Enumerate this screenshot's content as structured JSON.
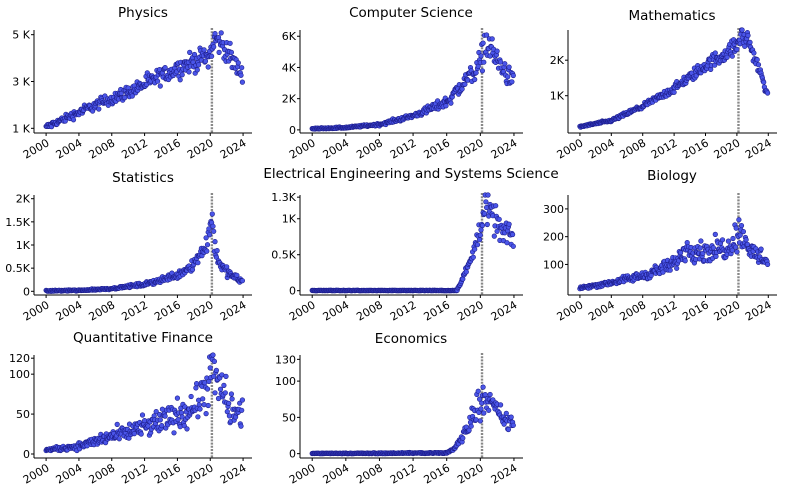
{
  "chart_data": [
    {
      "type": "scatter",
      "title": "Physics",
      "xlim": [
        1999.5,
        2024.6
      ],
      "ylim": [
        800,
        5200
      ],
      "yticks": [
        {
          "v": 1000,
          "label": "1 K"
        },
        {
          "v": 3000,
          "label": "3 K"
        },
        {
          "v": 5000,
          "label": "5 K"
        }
      ],
      "xticks": [
        "2000",
        "2004",
        "2008",
        "2012",
        "2016",
        "2020",
        "2024"
      ],
      "vline": 2020.2,
      "trend": [
        [
          2000,
          1050
        ],
        [
          2005,
          1850
        ],
        [
          2010,
          2550
        ],
        [
          2015,
          3400
        ],
        [
          2020,
          4150
        ],
        [
          2020.5,
          4800
        ],
        [
          2021.5,
          4600
        ],
        [
          2022.5,
          4000
        ],
        [
          2023.5,
          3500
        ],
        [
          2024,
          3250
        ]
      ],
      "noise": 0.055
    },
    {
      "type": "scatter",
      "title": "Computer Science",
      "xlim": [
        1999.5,
        2024.6
      ],
      "ylim": [
        -200,
        6400
      ],
      "yticks": [
        {
          "v": 0,
          "label": "0"
        },
        {
          "v": 2000,
          "label": "2K"
        },
        {
          "v": 4000,
          "label": "4K"
        },
        {
          "v": 6000,
          "label": "6K"
        }
      ],
      "xticks": [
        "2000",
        "2004",
        "2008",
        "2012",
        "2016",
        "2020",
        "2024"
      ],
      "vline": 2020.2,
      "trend": [
        [
          2000,
          80
        ],
        [
          2004,
          150
        ],
        [
          2008,
          350
        ],
        [
          2012,
          900
        ],
        [
          2016,
          1800
        ],
        [
          2018,
          3000
        ],
        [
          2020,
          4300
        ],
        [
          2020.6,
          5600
        ],
        [
          2021.5,
          5000
        ],
        [
          2022.5,
          4000
        ],
        [
          2023.5,
          3300
        ],
        [
          2024,
          3100
        ]
      ],
      "noise": 0.09
    },
    {
      "type": "scatter",
      "title": "Mathematics",
      "xlim": [
        1999.5,
        2024.6
      ],
      "ylim": [
        -50,
        2850
      ],
      "yticks": [
        {
          "v": 1000,
          "label": "1K"
        },
        {
          "v": 2000,
          "label": "2K"
        }
      ],
      "xticks": [
        "2000",
        "2004",
        "2008",
        "2012",
        "2016",
        "2020",
        "2024"
      ],
      "vline": 2020.2,
      "trend": [
        [
          2000,
          130
        ],
        [
          2004,
          300
        ],
        [
          2008,
          700
        ],
        [
          2012,
          1200
        ],
        [
          2016,
          1850
        ],
        [
          2020,
          2400
        ],
        [
          2020.5,
          2700
        ],
        [
          2021.5,
          2550
        ],
        [
          2022.5,
          1900
        ],
        [
          2023.5,
          1350
        ],
        [
          2024,
          900
        ]
      ],
      "noise": 0.05
    },
    {
      "type": "scatter",
      "title": "Statistics",
      "xlim": [
        1999.5,
        2024.6
      ],
      "ylim": [
        -80,
        2080
      ],
      "yticks": [
        {
          "v": 0,
          "label": "0"
        },
        {
          "v": 500,
          "label": "0.5K"
        },
        {
          "v": 1000,
          "label": "1K"
        },
        {
          "v": 1500,
          "label": "1.5K"
        },
        {
          "v": 2000,
          "label": "2K"
        }
      ],
      "xticks": [
        "2000",
        "2004",
        "2008",
        "2012",
        "2016",
        "2020",
        "2024"
      ],
      "vline": 2020.2,
      "trend": [
        [
          2000,
          10
        ],
        [
          2004,
          20
        ],
        [
          2008,
          60
        ],
        [
          2012,
          150
        ],
        [
          2016,
          350
        ],
        [
          2018,
          600
        ],
        [
          2019.5,
          1000
        ],
        [
          2020.2,
          1600
        ],
        [
          2020.6,
          900
        ],
        [
          2021.5,
          500
        ],
        [
          2022.5,
          350
        ],
        [
          2024,
          200
        ]
      ],
      "noise": 0.12
    },
    {
      "type": "scatter",
      "title": "Electrical Engineering and Systems Science",
      "xlim": [
        1999.5,
        2024.6
      ],
      "ylim": [
        -60,
        1330
      ],
      "yticks": [
        {
          "v": 0,
          "label": "0"
        },
        {
          "v": 500,
          "label": "0.5K"
        },
        {
          "v": 1000,
          "label": "1K"
        },
        {
          "v": 1300,
          "label": "1.3K"
        }
      ],
      "xticks": [
        "2000",
        "2004",
        "2008",
        "2012",
        "2016",
        "2020",
        "2024"
      ],
      "vline": 2020.2,
      "trend": [
        [
          2000,
          0
        ],
        [
          2017.2,
          0
        ],
        [
          2018,
          200
        ],
        [
          2019,
          450
        ],
        [
          2020,
          900
        ],
        [
          2020.6,
          1150
        ],
        [
          2021.5,
          1000
        ],
        [
          2022.5,
          850
        ],
        [
          2024,
          700
        ]
      ],
      "noise": 0.1
    },
    {
      "type": "scatter",
      "title": "Biology",
      "xlim": [
        1999.5,
        2024.6
      ],
      "ylim": [
        -10,
        350
      ],
      "yticks": [
        {
          "v": 100,
          "label": "100"
        },
        {
          "v": 200,
          "label": "200"
        },
        {
          "v": 300,
          "label": "300"
        }
      ],
      "xticks": [
        "2000",
        "2004",
        "2008",
        "2012",
        "2016",
        "2020",
        "2024"
      ],
      "vline": 2020.2,
      "trend": [
        [
          2000,
          15
        ],
        [
          2004,
          35
        ],
        [
          2008,
          60
        ],
        [
          2012,
          100
        ],
        [
          2013.5,
          160
        ],
        [
          2016,
          145
        ],
        [
          2019,
          165
        ],
        [
          2020.2,
          220
        ],
        [
          2021,
          190
        ],
        [
          2022,
          140
        ],
        [
          2024,
          115
        ]
      ],
      "noise": 0.13
    },
    {
      "type": "scatter",
      "title": "Quantitative Finance",
      "xlim": [
        1999.5,
        2024.6
      ],
      "ylim": [
        -5,
        124
      ],
      "yticks": [
        {
          "v": 0,
          "label": "0"
        },
        {
          "v": 50,
          "label": "50"
        },
        {
          "v": 100,
          "label": "100"
        },
        {
          "v": 120,
          "label": "120"
        }
      ],
      "xticks": [
        "2000",
        "2004",
        "2008",
        "2012",
        "2016",
        "2020",
        "2024"
      ],
      "vline": 2020.2,
      "trend": [
        [
          2000,
          5
        ],
        [
          2004,
          10
        ],
        [
          2008,
          22
        ],
        [
          2012,
          33
        ],
        [
          2016,
          48
        ],
        [
          2019,
          68
        ],
        [
          2020.5,
          105
        ],
        [
          2021.5,
          75
        ],
        [
          2022.5,
          55
        ],
        [
          2024,
          45
        ]
      ],
      "noise": 0.2
    },
    {
      "type": "scatter",
      "title": "Economics",
      "xlim": [
        1999.5,
        2024.6
      ],
      "ylim": [
        -6,
        136
      ],
      "yticks": [
        {
          "v": 0,
          "label": "0"
        },
        {
          "v": 50,
          "label": "50"
        },
        {
          "v": 100,
          "label": "100"
        },
        {
          "v": 130,
          "label": "130"
        }
      ],
      "xticks": [
        "2000",
        "2004",
        "2008",
        "2012",
        "2016",
        "2020",
        "2024"
      ],
      "vline": 2020.2,
      "trend": [
        [
          2000,
          0
        ],
        [
          2016,
          1
        ],
        [
          2017,
          8
        ],
        [
          2018,
          25
        ],
        [
          2019,
          50
        ],
        [
          2020.5,
          85
        ],
        [
          2021.5,
          65
        ],
        [
          2022.5,
          50
        ],
        [
          2024,
          38
        ]
      ],
      "noise": 0.15
    }
  ]
}
